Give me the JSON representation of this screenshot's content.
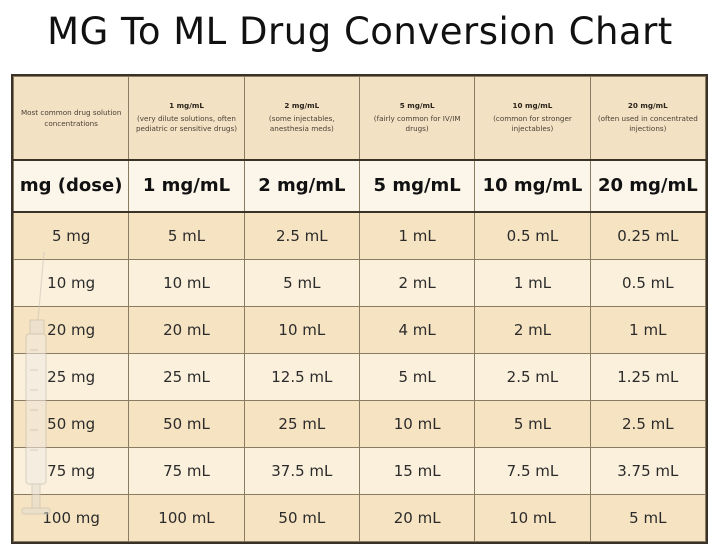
{
  "title": "MG To ML Drug Conversion Chart",
  "descriptions": [
    {
      "bold": "",
      "text": "Most common drug solution concentrations"
    },
    {
      "bold": "1 mg/mL",
      "text": "(very dilute solutions, often pediatric or sensitive drugs)"
    },
    {
      "bold": "2 mg/mL",
      "text": "(some injectables, anesthesia meds)"
    },
    {
      "bold": "5 mg/mL",
      "text": "(fairly common for IV/IM drugs)"
    },
    {
      "bold": "10 mg/mL",
      "text": "(common for stronger injectables)"
    },
    {
      "bold": "20 mg/mL",
      "text": "(often used in concentrated injections)"
    }
  ],
  "headers": [
    "mg (dose)",
    "1 mg/mL",
    "2 mg/mL",
    "5 mg/mL",
    "10 mg/mL",
    "20 mg/mL"
  ],
  "rows": [
    [
      "5 mg",
      "5 mL",
      "2.5 mL",
      "1 mL",
      "0.5 mL",
      "0.25 mL"
    ],
    [
      "10 mg",
      "10 mL",
      "5 mL",
      "2 mL",
      "1 mL",
      "0.5 mL"
    ],
    [
      "20 mg",
      "20 mL",
      "10 mL",
      "4 mL",
      "2 mL",
      "1 mL"
    ],
    [
      "25 mg",
      "25 mL",
      "12.5 mL",
      "5 mL",
      "2.5 mL",
      "1.25 mL"
    ],
    [
      "50 mg",
      "50 mL",
      "25 mL",
      "10 mL",
      "5 mL",
      "2.5 mL"
    ],
    [
      "75 mg",
      "75 mL",
      "37.5 mL",
      "15 mL",
      "7.5 mL",
      "3.75 mL"
    ],
    [
      "100 mg",
      "100 mL",
      "50 mL",
      "20 mL",
      "10 mL",
      "5 mL"
    ]
  ]
}
